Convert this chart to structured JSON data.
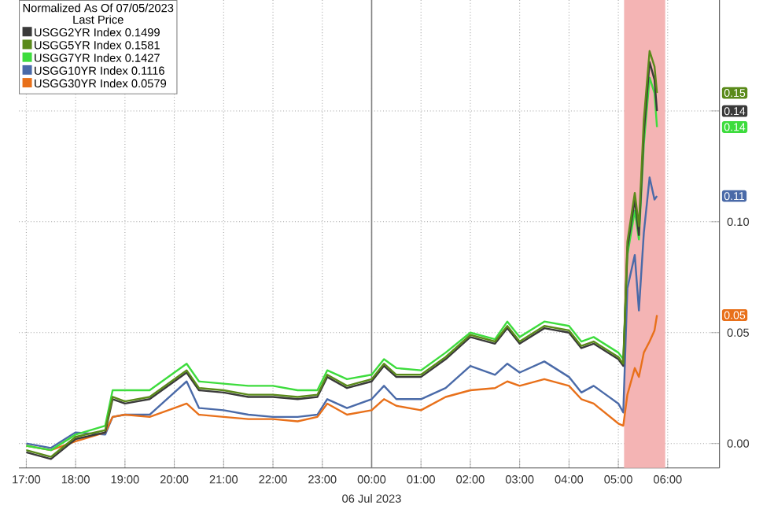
{
  "chart_data": {
    "type": "line",
    "legend_title": "Normalized As Of 07/05/2023",
    "x": [
      "2023-07-05T17:00",
      "2023-07-05T17:30",
      "2023-07-05T18:00",
      "2023-07-05T18:36",
      "2023-07-05T18:45",
      "2023-07-05T19:00",
      "2023-07-05T19:30",
      "2023-07-05T20:00",
      "2023-07-05T20:15",
      "2023-07-05T20:30",
      "2023-07-05T21:00",
      "2023-07-05T21:30",
      "2023-07-05T22:00",
      "2023-07-05T22:30",
      "2023-07-05T22:54",
      "2023-07-05T23:06",
      "2023-07-05T23:30",
      "2023-07-06T00:00",
      "2023-07-06T00:15",
      "2023-07-06T00:30",
      "2023-07-06T01:00",
      "2023-07-06T01:30",
      "2023-07-06T02:00",
      "2023-07-06T02:30",
      "2023-07-06T02:45",
      "2023-07-06T03:00",
      "2023-07-06T03:30",
      "2023-07-06T04:00",
      "2023-07-06T04:15",
      "2023-07-06T04:30",
      "2023-07-06T05:00",
      "2023-07-06T05:06",
      "2023-07-06T05:11",
      "2023-07-06T05:20",
      "2023-07-06T05:25",
      "2023-07-06T05:31",
      "2023-07-06T05:38",
      "2023-07-06T05:44",
      "2023-07-06T05:47"
    ],
    "series": [
      {
        "name": "USGG2YR Index 0.1499",
        "color": "#3a3a3a",
        "values": [
          -0.004,
          -0.007,
          0.002,
          0.005,
          0.02,
          0.018,
          0.02,
          0.028,
          0.032,
          0.024,
          0.023,
          0.021,
          0.021,
          0.02,
          0.021,
          0.03,
          0.025,
          0.028,
          0.035,
          0.03,
          0.03,
          0.038,
          0.048,
          0.045,
          0.052,
          0.045,
          0.052,
          0.05,
          0.043,
          0.045,
          0.038,
          0.035,
          0.088,
          0.11,
          0.094,
          0.14,
          0.172,
          0.164,
          0.1499
        ]
      },
      {
        "name": "USGG5YR Index 0.1581",
        "color": "#5a8a1a",
        "values": [
          -0.003,
          -0.006,
          0.003,
          0.006,
          0.021,
          0.019,
          0.021,
          0.029,
          0.033,
          0.025,
          0.024,
          0.022,
          0.022,
          0.021,
          0.022,
          0.031,
          0.026,
          0.029,
          0.036,
          0.031,
          0.031,
          0.039,
          0.049,
          0.046,
          0.053,
          0.046,
          0.053,
          0.051,
          0.044,
          0.046,
          0.039,
          0.036,
          0.091,
          0.113,
          0.098,
          0.146,
          0.177,
          0.17,
          0.1581
        ]
      },
      {
        "name": "USGG7YR Index 0.1427",
        "color": "#3ddc3d",
        "values": [
          -0.001,
          -0.003,
          0.004,
          0.008,
          0.024,
          0.024,
          0.024,
          0.032,
          0.036,
          0.028,
          0.027,
          0.026,
          0.026,
          0.024,
          0.024,
          0.033,
          0.029,
          0.031,
          0.038,
          0.034,
          0.033,
          0.041,
          0.05,
          0.047,
          0.055,
          0.048,
          0.055,
          0.053,
          0.046,
          0.048,
          0.041,
          0.038,
          0.085,
          0.105,
          0.092,
          0.135,
          0.165,
          0.158,
          0.1427
        ]
      },
      {
        "name": "USGG10YR Index 0.1116",
        "color": "#4a6aa8",
        "values": [
          0.0,
          -0.002,
          0.005,
          0.004,
          0.012,
          0.013,
          0.013,
          0.023,
          0.028,
          0.016,
          0.015,
          0.013,
          0.012,
          0.012,
          0.013,
          0.02,
          0.016,
          0.02,
          0.026,
          0.02,
          0.02,
          0.025,
          0.035,
          0.031,
          0.036,
          0.032,
          0.037,
          0.03,
          0.023,
          0.026,
          0.018,
          0.014,
          0.07,
          0.085,
          0.06,
          0.095,
          0.12,
          0.11,
          0.1116
        ]
      },
      {
        "name": "USGG30YR Index 0.0579",
        "color": "#e8701a",
        "values": [
          -0.001,
          -0.003,
          0.001,
          0.005,
          0.012,
          0.013,
          0.012,
          0.016,
          0.018,
          0.013,
          0.012,
          0.011,
          0.011,
          0.01,
          0.012,
          0.018,
          0.013,
          0.015,
          0.02,
          0.017,
          0.015,
          0.021,
          0.024,
          0.025,
          0.028,
          0.026,
          0.029,
          0.026,
          0.02,
          0.018,
          0.009,
          0.008,
          0.022,
          0.034,
          0.03,
          0.041,
          0.046,
          0.051,
          0.0579
        ]
      }
    ],
    "xlim": [
      "2023-07-05T16:51",
      "2023-07-06T07:03"
    ],
    "ylim": [
      -0.011,
      0.2
    ],
    "xticks": [
      {
        "value": "2023-07-05T17:00",
        "label": "17:00"
      },
      {
        "value": "2023-07-05T18:00",
        "label": "18:00"
      },
      {
        "value": "2023-07-05T19:00",
        "label": "19:00"
      },
      {
        "value": "2023-07-05T20:00",
        "label": "20:00"
      },
      {
        "value": "2023-07-05T21:00",
        "label": "21:00"
      },
      {
        "value": "2023-07-05T22:00",
        "label": "22:00"
      },
      {
        "value": "2023-07-05T23:00",
        "label": "23:00"
      },
      {
        "value": "2023-07-06T00:00",
        "label": "00:00"
      },
      {
        "value": "2023-07-06T01:00",
        "label": "01:00"
      },
      {
        "value": "2023-07-06T02:00",
        "label": "02:00"
      },
      {
        "value": "2023-07-06T03:00",
        "label": "03:00"
      },
      {
        "value": "2023-07-06T04:00",
        "label": "04:00"
      },
      {
        "value": "2023-07-06T05:00",
        "label": "05:00"
      },
      {
        "value": "2023-07-06T06:00",
        "label": "06:00"
      }
    ],
    "yticks": [
      {
        "value": 0,
        "label": "0.00"
      },
      {
        "value": 0.05,
        "label": "0.05"
      },
      {
        "value": 0.1,
        "label": "0.10"
      },
      {
        "value": 0.15,
        "label": null
      }
    ],
    "grid": true,
    "legend": "top left",
    "line_style": "solid",
    "ref_lines": [
      {
        "axis": "x",
        "value": "2023-07-06T00:00",
        "color": "#808080"
      }
    ],
    "bands": [
      {
        "axis": "x",
        "from": "2023-07-06T05:07",
        "to": "2023-07-06T05:57",
        "color": "#f4b4b4"
      }
    ],
    "annotations": [
      "Last Price",
      "06 Jul 2023",
      "0.14",
      "0.15",
      "0.14",
      "0.11",
      "0.05"
    ]
  }
}
